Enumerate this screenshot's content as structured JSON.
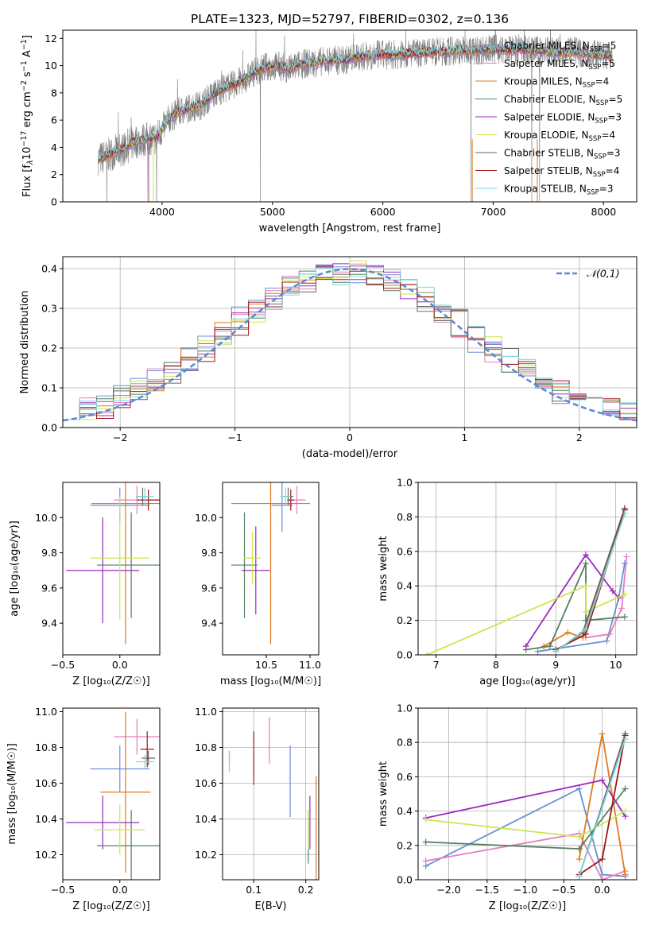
{
  "figure": {
    "title": "PLATE=1323, MJD=52797, FIBERID=0302, z=0.136"
  },
  "colors": {
    "Chabrier MILES": "#6a8fd6",
    "Salpeter MILES": "#e37fbf",
    "Kroupa MILES": "#e07a1f",
    "Chabrier ELODIE": "#537f5e",
    "Salpeter ELODIE": "#9b2bbd",
    "Kroupa ELODIE": "#cde64f",
    "Chabrier STELIB": "#666666",
    "Salpeter STELIB": "#a01818",
    "Kroupa STELIB": "#7fd6de",
    "gauss": "#5b87d6"
  },
  "chart_data": [
    {
      "id": "spectrum",
      "type": "line",
      "title": "PLATE=1323, MJD=52797, FIBERID=0302, z=0.136",
      "xlabel": "wavelength [Angstrom, rest frame]",
      "ylabel_parts": [
        "Flux [f",
        "λ",
        "10",
        "−17",
        " erg cm",
        "−2",
        " s",
        "−1",
        " A",
        "−1",
        "]"
      ],
      "xlim": [
        3100,
        8300
      ],
      "ylim": [
        0,
        12.6
      ],
      "xticks": [
        4000,
        5000,
        6000,
        7000,
        8000
      ],
      "yticks": [
        0,
        2,
        4,
        6,
        8,
        10,
        12
      ],
      "legend_position": "top-right",
      "legend": [
        {
          "name": "Chabrier MILES",
          "n": "5"
        },
        {
          "name": "Salpeter MILES",
          "n": "5"
        },
        {
          "name": "Kroupa MILES",
          "n": "4"
        },
        {
          "name": "Chabrier ELODIE",
          "n": "5"
        },
        {
          "name": "Salpeter ELODIE",
          "n": "3"
        },
        {
          "name": "Kroupa ELODIE",
          "n": "4"
        },
        {
          "name": "Chabrier STELIB",
          "n": "3"
        },
        {
          "name": "Salpeter STELIB",
          "n": "4"
        },
        {
          "name": "Kroupa STELIB",
          "n": "3"
        }
      ],
      "model_knots": [
        [
          3450,
          3.2
        ],
        [
          3550,
          3.6
        ],
        [
          3650,
          3.9
        ],
        [
          3750,
          4.4
        ],
        [
          3850,
          4.6
        ],
        [
          3950,
          4.7
        ],
        [
          4050,
          6.0
        ],
        [
          4150,
          6.6
        ],
        [
          4250,
          6.9
        ],
        [
          4350,
          7.1
        ],
        [
          4450,
          7.8
        ],
        [
          4550,
          8.3
        ],
        [
          4650,
          8.6
        ],
        [
          4750,
          9.0
        ],
        [
          4850,
          9.6
        ],
        [
          4950,
          9.9
        ],
        [
          5050,
          10.0
        ],
        [
          5150,
          9.7
        ],
        [
          5250,
          10.1
        ],
        [
          5350,
          10.2
        ],
        [
          5450,
          10.3
        ],
        [
          5550,
          10.4
        ],
        [
          5650,
          10.4
        ],
        [
          5750,
          10.6
        ],
        [
          5850,
          10.7
        ],
        [
          5950,
          10.8
        ],
        [
          6050,
          10.8
        ],
        [
          6150,
          10.8
        ],
        [
          6250,
          10.9
        ],
        [
          6350,
          10.9
        ],
        [
          6450,
          11.0
        ],
        [
          6550,
          11.0
        ],
        [
          6650,
          11.1
        ],
        [
          6750,
          11.1
        ],
        [
          6850,
          11.1
        ],
        [
          6950,
          11.2
        ],
        [
          7050,
          11.2
        ],
        [
          7150,
          11.1
        ],
        [
          7250,
          11.2
        ],
        [
          7350,
          11.1
        ],
        [
          7450,
          11.1
        ],
        [
          7550,
          11.0
        ],
        [
          7650,
          11.0
        ],
        [
          7750,
          11.0
        ],
        [
          7850,
          10.9
        ],
        [
          7950,
          10.8
        ],
        [
          8050,
          10.7
        ]
      ],
      "data_spikes_down": [
        3500,
        3870,
        3950,
        4890,
        6800,
        7350,
        7420
      ],
      "data_start": 3420,
      "data_end": 8080
    },
    {
      "id": "residuals",
      "type": "histogram",
      "xlabel": "(data-model)/error",
      "ylabel": "Normed distribution",
      "xlim": [
        -2.5,
        2.5
      ],
      "ylim": [
        0,
        0.43
      ],
      "xticks": [
        -2,
        -1,
        0,
        1,
        2
      ],
      "yticks": [
        0.0,
        0.1,
        0.2,
        0.3,
        0.4
      ],
      "legend_position": "top-right",
      "legend": [
        "𝒩(0,1)"
      ],
      "grid": true
    },
    {
      "id": "age_vs_Z",
      "type": "scatter",
      "xlabel": "Z [log₁₀(Z/Z☉)]",
      "ylabel": "age  [log₁₀(age/yr)]",
      "xlim": [
        -0.5,
        0.35
      ],
      "ylim": [
        9.22,
        10.2
      ],
      "xticks": [
        -0.5,
        0.0
      ],
      "yticks": [
        9.4,
        9.6,
        9.8,
        10.0
      ],
      "points": [
        {
          "model": "Chabrier MILES",
          "x": 0.0,
          "y": 10.07,
          "xerr": 0.26,
          "yerr": 0.1
        },
        {
          "model": "Salpeter MILES",
          "x": 0.15,
          "y": 10.1,
          "xerr": 0.2,
          "yerr": 0.08
        },
        {
          "model": "Kroupa MILES",
          "x": 0.05,
          "y": 10.08,
          "xerr": 0.3,
          "yerr": 0.8
        },
        {
          "model": "Chabrier ELODIE",
          "x": 0.1,
          "y": 9.73,
          "xerr": 0.3,
          "yerr": 0.3
        },
        {
          "model": "Salpeter ELODIE",
          "x": -0.15,
          "y": 9.7,
          "xerr": 0.32,
          "yerr": 0.3
        },
        {
          "model": "Kroupa ELODIE",
          "x": 0.0,
          "y": 9.77,
          "xerr": 0.26,
          "yerr": 0.35
        },
        {
          "model": "Chabrier STELIB",
          "x": 0.2,
          "y": 10.12,
          "xerr": 0.06,
          "yerr": 0.05
        },
        {
          "model": "Salpeter STELIB",
          "x": 0.25,
          "y": 10.1,
          "xerr": 0.1,
          "yerr": 0.06
        },
        {
          "model": "Kroupa STELIB",
          "x": 0.22,
          "y": 10.12,
          "xerr": 0.08,
          "yerr": 0.05
        }
      ]
    },
    {
      "id": "age_vs_mass",
      "type": "scatter",
      "xlabel": "mass [log₁₀(M/M☉)]",
      "ylabel": "",
      "xlim": [
        10.0,
        11.1
      ],
      "ylim": [
        9.22,
        10.2
      ],
      "xticks": [
        10.5,
        11.0
      ],
      "yticks": [
        9.4,
        9.6,
        9.8,
        10.0
      ],
      "points": [
        {
          "model": "Chabrier MILES",
          "x": 10.68,
          "y": 10.07,
          "xerr": 0.12,
          "yerr": 0.15
        },
        {
          "model": "Salpeter MILES",
          "x": 10.85,
          "y": 10.1,
          "xerr": 0.1,
          "yerr": 0.08
        },
        {
          "model": "Kroupa MILES",
          "x": 10.55,
          "y": 10.08,
          "xerr": 0.45,
          "yerr": 0.8
        },
        {
          "model": "Chabrier ELODIE",
          "x": 10.25,
          "y": 9.73,
          "xerr": 0.15,
          "yerr": 0.3
        },
        {
          "model": "Salpeter ELODIE",
          "x": 10.38,
          "y": 9.7,
          "xerr": 0.16,
          "yerr": 0.25
        },
        {
          "model": "Kroupa ELODIE",
          "x": 10.34,
          "y": 9.77,
          "xerr": 0.1,
          "yerr": 0.15
        },
        {
          "model": "Chabrier STELIB",
          "x": 10.75,
          "y": 10.12,
          "xerr": 0.06,
          "yerr": 0.05
        },
        {
          "model": "Salpeter STELIB",
          "x": 10.78,
          "y": 10.1,
          "xerr": 0.04,
          "yerr": 0.06
        },
        {
          "model": "Kroupa STELIB",
          "x": 10.72,
          "y": 10.12,
          "xerr": 0.06,
          "yerr": 0.05
        }
      ]
    },
    {
      "id": "weight_vs_age",
      "type": "line",
      "xlabel": "age  [log₁₀(age/yr)]",
      "ylabel": "mass weight",
      "xlim": [
        6.7,
        10.35
      ],
      "ylim": [
        0,
        1.0
      ],
      "xticks": [
        7,
        8,
        9,
        10
      ],
      "yticks": [
        0.0,
        0.2,
        0.4,
        0.6,
        0.8,
        1.0
      ],
      "grid": true,
      "series": [
        {
          "model": "Chabrier MILES",
          "points": [
            [
              8.7,
              0.02
            ],
            [
              9.85,
              0.08
            ],
            [
              10.05,
              0.33
            ],
            [
              10.15,
              0.53
            ]
          ]
        },
        {
          "model": "Salpeter MILES",
          "points": [
            [
              9.5,
              0.1
            ],
            [
              9.9,
              0.12
            ],
            [
              10.1,
              0.27
            ],
            [
              10.18,
              0.57
            ]
          ]
        },
        {
          "model": "Kroupa MILES",
          "points": [
            [
              8.8,
              0.05
            ],
            [
              9.2,
              0.13
            ],
            [
              9.45,
              0.1
            ],
            [
              10.15,
              0.85
            ]
          ]
        },
        {
          "model": "Chabrier ELODIE",
          "points": [
            [
              8.5,
              0.03
            ],
            [
              8.9,
              0.05
            ],
            [
              9.5,
              0.53
            ],
            [
              9.5,
              0.2
            ],
            [
              10.15,
              0.22
            ]
          ]
        },
        {
          "model": "Salpeter ELODIE",
          "points": [
            [
              8.5,
              0.05
            ],
            [
              9.5,
              0.58
            ],
            [
              9.95,
              0.37
            ],
            [
              10.05,
              0.33
            ]
          ]
        },
        {
          "model": "Kroupa ELODIE",
          "points": [
            [
              6.85,
              0.0
            ],
            [
              9.5,
              0.4
            ],
            [
              9.5,
              0.25
            ],
            [
              10.15,
              0.35
            ]
          ]
        },
        {
          "model": "Chabrier STELIB",
          "points": [
            [
              9.0,
              0.02
            ],
            [
              9.45,
              0.13
            ],
            [
              10.15,
              0.85
            ]
          ]
        },
        {
          "model": "Salpeter STELIB",
          "points": [
            [
              9.0,
              0.03
            ],
            [
              9.5,
              0.12
            ],
            [
              10.15,
              0.84
            ]
          ]
        },
        {
          "model": "Kroupa STELIB",
          "points": [
            [
              9.0,
              0.02
            ],
            [
              9.5,
              0.15
            ],
            [
              10.15,
              0.82
            ]
          ]
        }
      ]
    },
    {
      "id": "mass_vs_Z",
      "type": "scatter",
      "xlabel": "Z [log₁₀(Z/Z☉)]",
      "ylabel": "mass [log₁₀(M/M☉)]",
      "xlim": [
        -0.5,
        0.35
      ],
      "ylim": [
        10.06,
        11.02
      ],
      "xticks": [
        -0.5,
        0.0
      ],
      "yticks": [
        10.2,
        10.4,
        10.6,
        10.8,
        11.0
      ],
      "points": [
        {
          "model": "Chabrier MILES",
          "x": 0.0,
          "y": 10.68,
          "xerr": 0.26,
          "yerr": 0.13
        },
        {
          "model": "Salpeter MILES",
          "x": 0.15,
          "y": 10.86,
          "xerr": 0.2,
          "yerr": 0.1
        },
        {
          "model": "Kroupa MILES",
          "x": 0.05,
          "y": 10.55,
          "xerr": 0.22,
          "yerr": 0.45
        },
        {
          "model": "Chabrier ELODIE",
          "x": 0.1,
          "y": 10.25,
          "xerr": 0.3,
          "yerr": 0.2
        },
        {
          "model": "Salpeter ELODIE",
          "x": -0.15,
          "y": 10.38,
          "xerr": 0.32,
          "yerr": 0.15
        },
        {
          "model": "Kroupa ELODIE",
          "x": 0.0,
          "y": 10.34,
          "xerr": 0.22,
          "yerr": 0.14
        },
        {
          "model": "Chabrier STELIB",
          "x": 0.25,
          "y": 10.74,
          "xerr": 0.06,
          "yerr": 0.04
        },
        {
          "model": "Salpeter STELIB",
          "x": 0.24,
          "y": 10.79,
          "xerr": 0.06,
          "yerr": 0.1
        },
        {
          "model": "Kroupa STELIB",
          "x": 0.22,
          "y": 10.72,
          "xerr": 0.08,
          "yerr": 0.04
        }
      ]
    },
    {
      "id": "mass_vs_ebv",
      "type": "scatter",
      "xlabel": "E(B-V)",
      "ylabel": "",
      "xlim": [
        0.04,
        0.225
      ],
      "ylim": [
        10.06,
        11.02
      ],
      "xticks": [
        0.1,
        0.2
      ],
      "yticks": [
        10.2,
        10.4,
        10.6,
        10.8,
        11.0
      ],
      "grid": true,
      "points": [
        {
          "model": "Chabrier MILES",
          "x": 0.17,
          "y": 10.61,
          "yerr": 0.2
        },
        {
          "model": "Salpeter MILES",
          "x": 0.13,
          "y": 10.84,
          "yerr": 0.13
        },
        {
          "model": "Kroupa MILES",
          "x": 0.22,
          "y": 10.3,
          "yerr": 0.34
        },
        {
          "model": "Chabrier ELODIE",
          "x": 0.205,
          "y": 10.3,
          "yerr": 0.15
        },
        {
          "model": "Salpeter ELODIE",
          "x": 0.208,
          "y": 10.38,
          "yerr": 0.15
        },
        {
          "model": "Kroupa ELODIE",
          "x": 0.205,
          "y": 10.34,
          "yerr": 0.11
        },
        {
          "model": "Chabrier STELIB",
          "x": 0.053,
          "y": 10.74,
          "yerr": 0.04
        },
        {
          "model": "Salpeter STELIB",
          "x": 0.1,
          "y": 10.74,
          "yerr": 0.15
        },
        {
          "model": "Kroupa STELIB",
          "x": 0.053,
          "y": 10.72,
          "yerr": 0.06
        }
      ]
    },
    {
      "id": "weight_vs_Z",
      "type": "line",
      "xlabel": "Z [log₁₀(Z/Z☉)]",
      "ylabel": "mass weight",
      "xlim": [
        -2.4,
        0.45
      ],
      "ylim": [
        0,
        1.0
      ],
      "xticks": [
        -2.0,
        -1.5,
        -1.0,
        -0.5,
        0.0
      ],
      "yticks": [
        0.0,
        0.2,
        0.4,
        0.6,
        0.8,
        1.0
      ],
      "grid": true,
      "series": [
        {
          "model": "Chabrier MILES",
          "points": [
            [
              -2.3,
              0.08
            ],
            [
              -0.3,
              0.53
            ],
            [
              0.0,
              0.03
            ],
            [
              0.3,
              0.02
            ]
          ]
        },
        {
          "model": "Salpeter MILES",
          "points": [
            [
              -2.3,
              0.11
            ],
            [
              -0.3,
              0.27
            ],
            [
              0.0,
              0.0
            ],
            [
              0.3,
              0.05
            ]
          ]
        },
        {
          "model": "Kroupa MILES",
          "points": [
            [
              -0.3,
              0.12
            ],
            [
              0.0,
              0.85
            ],
            [
              0.3,
              0.03
            ]
          ]
        },
        {
          "model": "Chabrier ELODIE",
          "points": [
            [
              -2.3,
              0.22
            ],
            [
              -0.3,
              0.18
            ],
            [
              0.3,
              0.53
            ]
          ]
        },
        {
          "model": "Salpeter ELODIE",
          "points": [
            [
              -2.3,
              0.36
            ],
            [
              0.0,
              0.58
            ],
            [
              0.3,
              0.37
            ]
          ]
        },
        {
          "model": "Kroupa ELODIE",
          "points": [
            [
              -2.3,
              0.35
            ],
            [
              -0.3,
              0.25
            ],
            [
              0.3,
              0.4
            ]
          ]
        },
        {
          "model": "Chabrier STELIB",
          "points": [
            [
              -0.3,
              0.02
            ],
            [
              0.3,
              0.85
            ]
          ]
        },
        {
          "model": "Salpeter STELIB",
          "points": [
            [
              -0.3,
              0.03
            ],
            [
              0.0,
              0.12
            ],
            [
              0.3,
              0.84
            ]
          ]
        },
        {
          "model": "Kroupa STELIB",
          "points": [
            [
              -0.3,
              0.02
            ],
            [
              0.3,
              0.82
            ]
          ]
        }
      ]
    }
  ]
}
